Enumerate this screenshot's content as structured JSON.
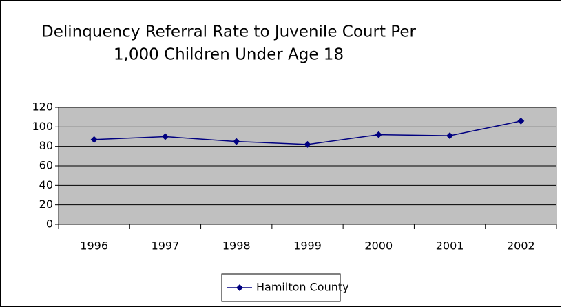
{
  "chart_data": {
    "type": "line",
    "title": [
      "Delinquency Referral Rate to Juvenile Court Per",
      "1,000 Children Under Age 18"
    ],
    "categories": [
      "1996",
      "1997",
      "1998",
      "1999",
      "2000",
      "2001",
      "2002"
    ],
    "series": [
      {
        "name": "Hamilton County",
        "color": "#000080",
        "values": [
          87,
          90,
          85,
          82,
          92,
          91,
          106
        ]
      }
    ],
    "ylim": [
      0,
      120
    ],
    "yticks": [
      0,
      20,
      40,
      60,
      80,
      100,
      120
    ],
    "grid": true,
    "legend": "bottom",
    "plot_background": "#c0c0c0"
  }
}
